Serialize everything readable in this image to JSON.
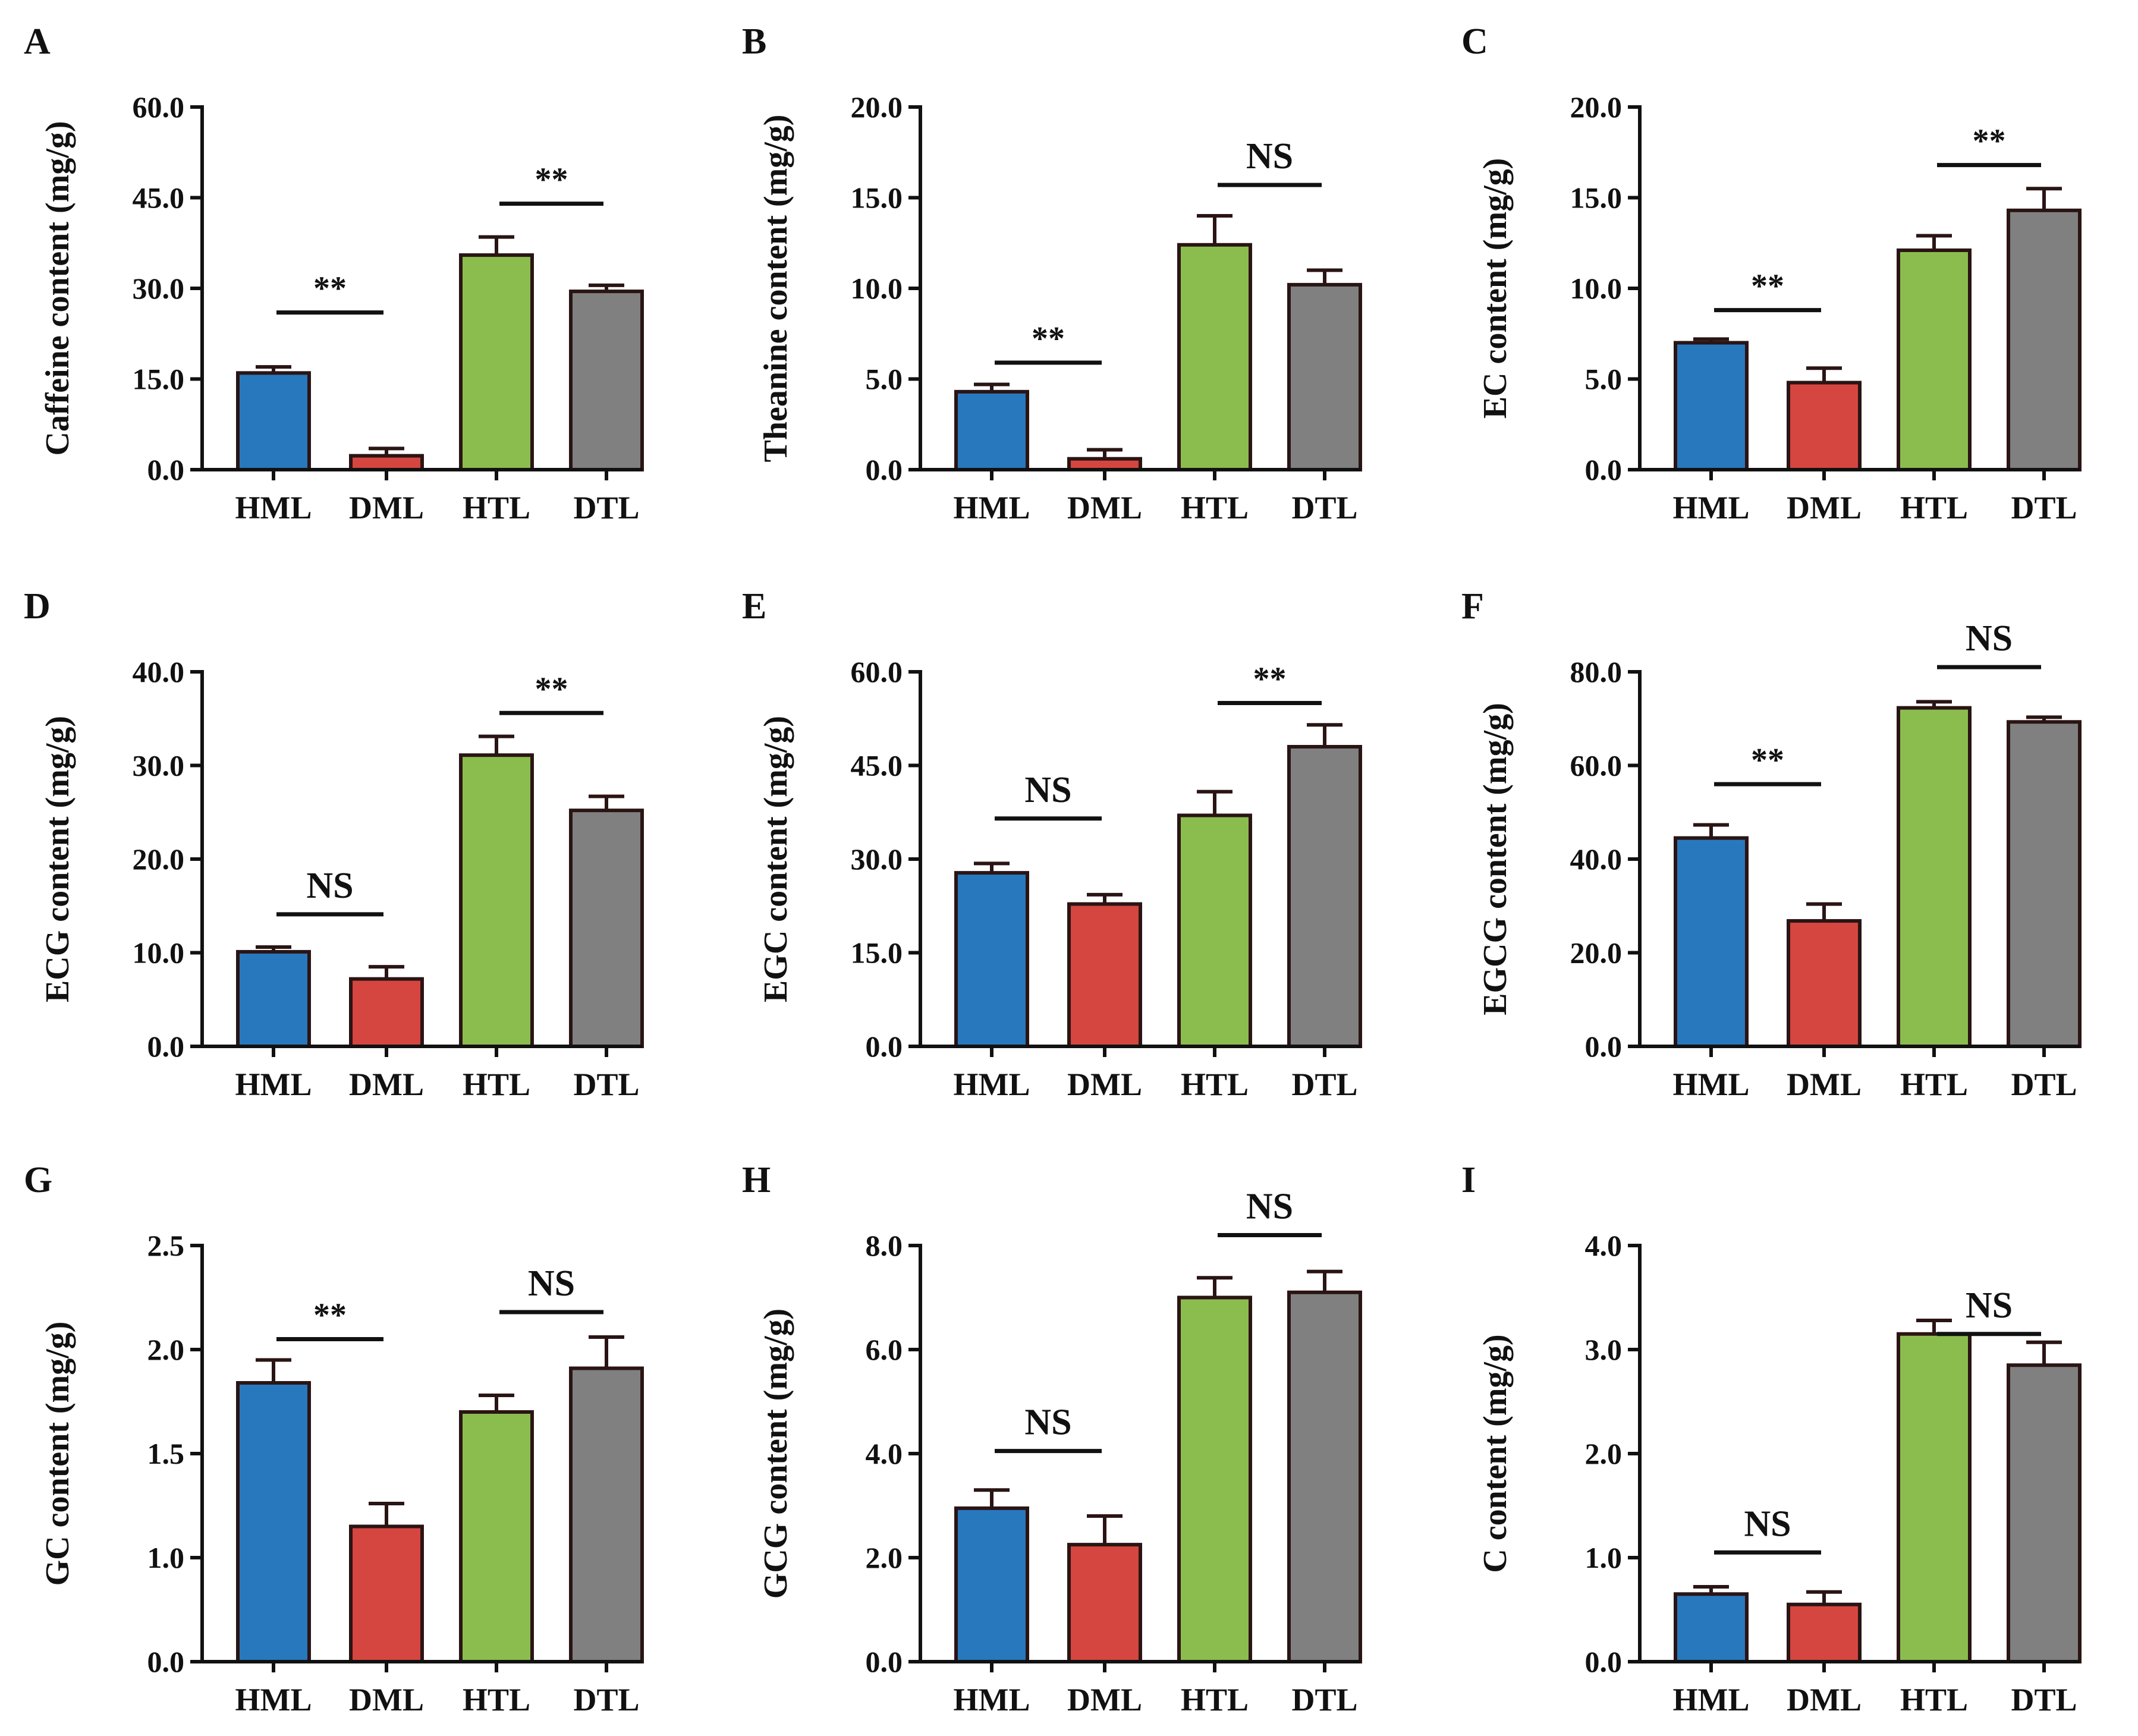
{
  "figure": {
    "colors": {
      "HML": "#2878bd",
      "DML": "#d4463f",
      "HTL": "#8bbd4e",
      "DTL": "#808080",
      "outline": "#2a1414",
      "axis": "#111111"
    },
    "panels": [
      {
        "letter": "A",
        "chart_data": {
          "type": "bar",
          "ylabel": "Caffeine content (mg/g)",
          "categories": [
            "HML",
            "DML",
            "HTL",
            "DTL"
          ],
          "values": [
            16.0,
            2.3,
            35.5,
            29.5
          ],
          "errors": [
            1.0,
            1.2,
            3.0,
            1.0
          ],
          "yticks": [
            "0.0",
            "15.0",
            "30.0",
            "45.0",
            "60.0"
          ],
          "ylim": [
            0,
            60
          ],
          "comparisons": [
            {
              "from": 0,
              "to": 1,
              "label": "**",
              "y": 26
            },
            {
              "from": 2,
              "to": 3,
              "label": "**",
              "y": 44
            }
          ]
        }
      },
      {
        "letter": "B",
        "chart_data": {
          "type": "bar",
          "ylabel": "Theanine content (mg/g)",
          "categories": [
            "HML",
            "DML",
            "HTL",
            "DTL"
          ],
          "values": [
            4.3,
            0.6,
            12.4,
            10.2
          ],
          "errors": [
            0.4,
            0.5,
            1.6,
            0.8
          ],
          "yticks": [
            "0.0",
            "5.0",
            "10.0",
            "15.0",
            "20.0"
          ],
          "ylim": [
            0,
            20
          ],
          "comparisons": [
            {
              "from": 0,
              "to": 1,
              "label": "**",
              "y": 5.9
            },
            {
              "from": 2,
              "to": 3,
              "label": "NS",
              "y": 15.7
            }
          ]
        }
      },
      {
        "letter": "C",
        "chart_data": {
          "type": "bar",
          "ylabel": "EC content (mg/g)",
          "categories": [
            "HML",
            "DML",
            "HTL",
            "DTL"
          ],
          "values": [
            7.0,
            4.8,
            12.1,
            14.3
          ],
          "errors": [
            0.2,
            0.8,
            0.8,
            1.2
          ],
          "yticks": [
            "0.0",
            "5.0",
            "10.0",
            "15.0",
            "20.0"
          ],
          "ylim": [
            0,
            20
          ],
          "comparisons": [
            {
              "from": 0,
              "to": 1,
              "label": "**",
              "y": 8.8
            },
            {
              "from": 2,
              "to": 3,
              "label": "**",
              "y": 16.8
            }
          ]
        }
      },
      {
        "letter": "D",
        "chart_data": {
          "type": "bar",
          "ylabel": "ECG  content (mg/g)",
          "categories": [
            "HML",
            "DML",
            "HTL",
            "DTL"
          ],
          "values": [
            10.1,
            7.2,
            31.1,
            25.2
          ],
          "errors": [
            0.5,
            1.3,
            2.0,
            1.5
          ],
          "yticks": [
            "0.0",
            "10.0",
            "20.0",
            "30.0",
            "40.0"
          ],
          "ylim": [
            0,
            40
          ],
          "comparisons": [
            {
              "from": 0,
              "to": 1,
              "label": "NS",
              "y": 14.1
            },
            {
              "from": 2,
              "to": 3,
              "label": "**",
              "y": 35.6
            }
          ]
        }
      },
      {
        "letter": "E",
        "chart_data": {
          "type": "bar",
          "ylabel": "EGC  content (mg/g)",
          "categories": [
            "HML",
            "DML",
            "HTL",
            "DTL"
          ],
          "values": [
            27.8,
            22.8,
            37.0,
            48.0
          ],
          "errors": [
            1.5,
            1.5,
            3.8,
            3.5
          ],
          "yticks": [
            "0.0",
            "15.0",
            "30.0",
            "45.0",
            "60.0"
          ],
          "ylim": [
            0,
            60
          ],
          "comparisons": [
            {
              "from": 0,
              "to": 1,
              "label": "NS",
              "y": 36.5
            },
            {
              "from": 2,
              "to": 3,
              "label": "**",
              "y": 55.0
            }
          ]
        }
      },
      {
        "letter": "F",
        "chart_data": {
          "type": "bar",
          "ylabel": "EGCG  content (mg/g)",
          "categories": [
            "HML",
            "DML",
            "HTL",
            "DTL"
          ],
          "values": [
            44.5,
            26.8,
            72.3,
            69.3
          ],
          "errors": [
            2.8,
            3.6,
            1.3,
            1.0
          ],
          "yticks": [
            "0.0",
            "20.0",
            "40.0",
            "60.0",
            "80.0"
          ],
          "ylim": [
            0,
            80
          ],
          "comparisons": [
            {
              "from": 0,
              "to": 1,
              "label": "**",
              "y": 56.0
            },
            {
              "from": 2,
              "to": 3,
              "label": "NS",
              "y": 81.0
            }
          ]
        }
      },
      {
        "letter": "G",
        "chart_data": {
          "type": "bar",
          "ylabel": "GC  content (mg/g)",
          "categories": [
            "HML",
            "DML",
            "HTL",
            "DTL"
          ],
          "values": [
            1.84,
            1.15,
            1.7,
            1.91
          ],
          "errors": [
            0.11,
            0.11,
            0.08,
            0.15
          ],
          "yticks": [
            "0.0",
            "1.0",
            "1.5",
            "2.0",
            "2.5"
          ],
          "ylim": [
            0.5,
            2.5
          ],
          "comparisons": [
            {
              "from": 0,
              "to": 1,
              "label": "**",
              "y": 2.05
            },
            {
              "from": 2,
              "to": 3,
              "label": "NS",
              "y": 2.18
            }
          ]
        }
      },
      {
        "letter": "H",
        "chart_data": {
          "type": "bar",
          "ylabel": "GCG  content (mg/g)",
          "categories": [
            "HML",
            "DML",
            "HTL",
            "DTL"
          ],
          "values": [
            2.95,
            2.25,
            7.0,
            7.1
          ],
          "errors": [
            0.35,
            0.55,
            0.38,
            0.4
          ],
          "yticks": [
            "0.0",
            "2.0",
            "4.0",
            "6.0",
            "8.0"
          ],
          "ylim": [
            0,
            8
          ],
          "comparisons": [
            {
              "from": 0,
              "to": 1,
              "label": "NS",
              "y": 4.05
            },
            {
              "from": 2,
              "to": 3,
              "label": "NS",
              "y": 8.2
            }
          ]
        }
      },
      {
        "letter": "I",
        "chart_data": {
          "type": "bar",
          "ylabel": "C content (mg/g)",
          "categories": [
            "HML",
            "DML",
            "HTL",
            "DTL"
          ],
          "values": [
            0.65,
            0.55,
            3.15,
            2.85
          ],
          "errors": [
            0.07,
            0.12,
            0.13,
            0.22
          ],
          "yticks": [
            "0.0",
            "1.0",
            "2.0",
            "3.0",
            "4.0"
          ],
          "ylim": [
            0,
            4
          ],
          "comparisons": [
            {
              "from": 0,
              "to": 1,
              "label": "NS",
              "y": 1.05
            },
            {
              "from": 2,
              "to": 3,
              "label": "NS",
              "y": 3.15
            }
          ]
        }
      }
    ]
  }
}
